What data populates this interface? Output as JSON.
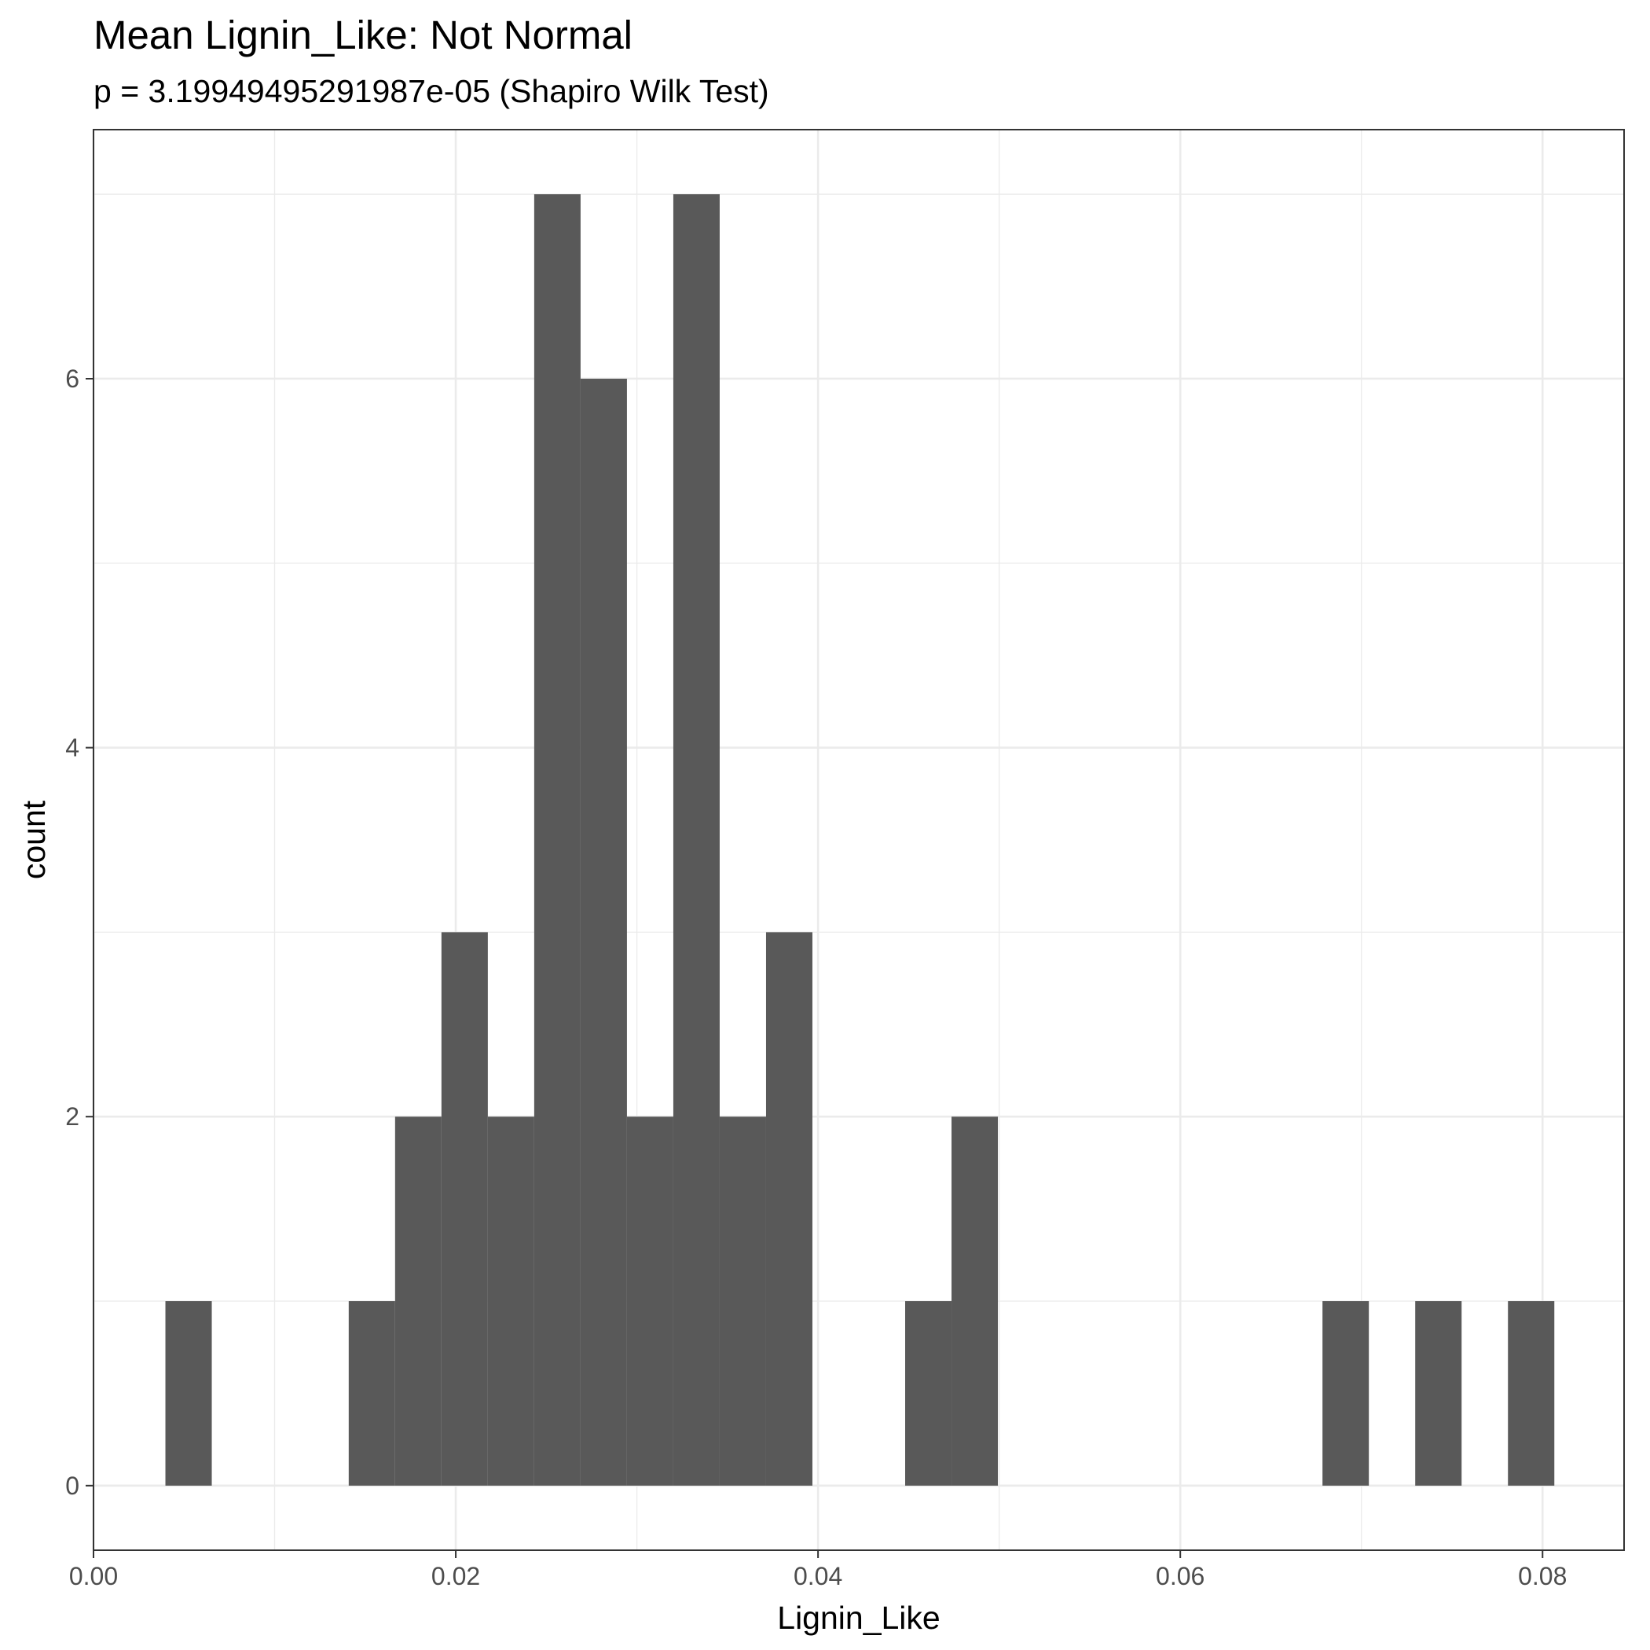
{
  "chart_data": {
    "type": "bar",
    "title": "Mean Lignin_Like: Not Normal",
    "subtitle": "p = 3.19949495291987e-05 (Shapiro Wilk Test)",
    "xlabel": "Lignin_Like",
    "ylabel": "count",
    "xlim": [
      0.0,
      0.0845
    ],
    "ylim": [
      -0.35,
      7.35
    ],
    "x_ticks": [
      0.0,
      0.02,
      0.04,
      0.06,
      0.08
    ],
    "x_tick_labels": [
      "0.00",
      "0.02",
      "0.04",
      "0.06",
      "0.08"
    ],
    "y_ticks": [
      0,
      2,
      4,
      6
    ],
    "y_tick_labels": [
      "0",
      "2",
      "4",
      "6"
    ],
    "bin_width": 0.00256,
    "bins": [
      {
        "x": 0.00525,
        "count": 1
      },
      {
        "x": 0.01537,
        "count": 1
      },
      {
        "x": 0.01793,
        "count": 2
      },
      {
        "x": 0.02049,
        "count": 3
      },
      {
        "x": 0.02305,
        "count": 2
      },
      {
        "x": 0.02561,
        "count": 7
      },
      {
        "x": 0.02817,
        "count": 6
      },
      {
        "x": 0.03073,
        "count": 2
      },
      {
        "x": 0.03329,
        "count": 7
      },
      {
        "x": 0.03585,
        "count": 2
      },
      {
        "x": 0.03841,
        "count": 3
      },
      {
        "x": 0.04609,
        "count": 1
      },
      {
        "x": 0.04865,
        "count": 2
      },
      {
        "x": 0.06913,
        "count": 1
      },
      {
        "x": 0.07425,
        "count": 1
      },
      {
        "x": 0.07937,
        "count": 1
      }
    ],
    "grid": true,
    "bar_color": "#595959",
    "grid_color": "#ebebeb",
    "panel_border_color": "#333333"
  }
}
